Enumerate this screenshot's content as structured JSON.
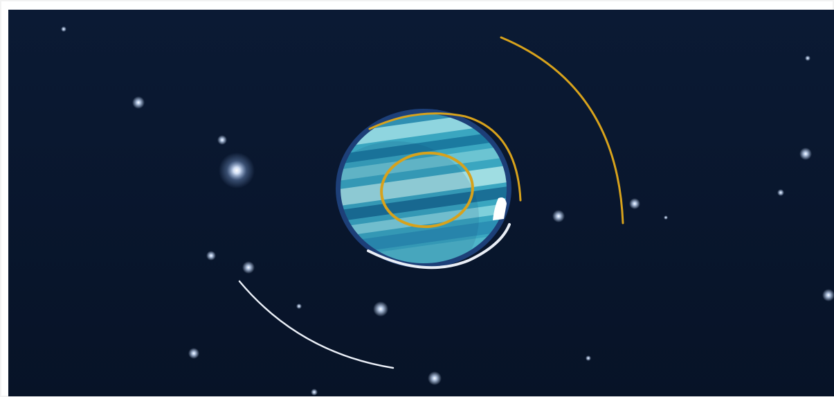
{
  "scene": {
    "colors": {
      "sky_top": "#0b1a34",
      "sky_bottom": "#071327",
      "planet_light": "#7fd0db",
      "planet_mid": "#3aa6c0",
      "planet_dark": "#1b6f98",
      "planet_rim": "#1d3f78",
      "orbit_gold": "#d7a21c",
      "orbit_white": "#e9eef6",
      "star_glow": "#cfe2ff"
    },
    "icons": [
      "star-icon",
      "planet-icon",
      "orbit-arc-icon"
    ]
  }
}
